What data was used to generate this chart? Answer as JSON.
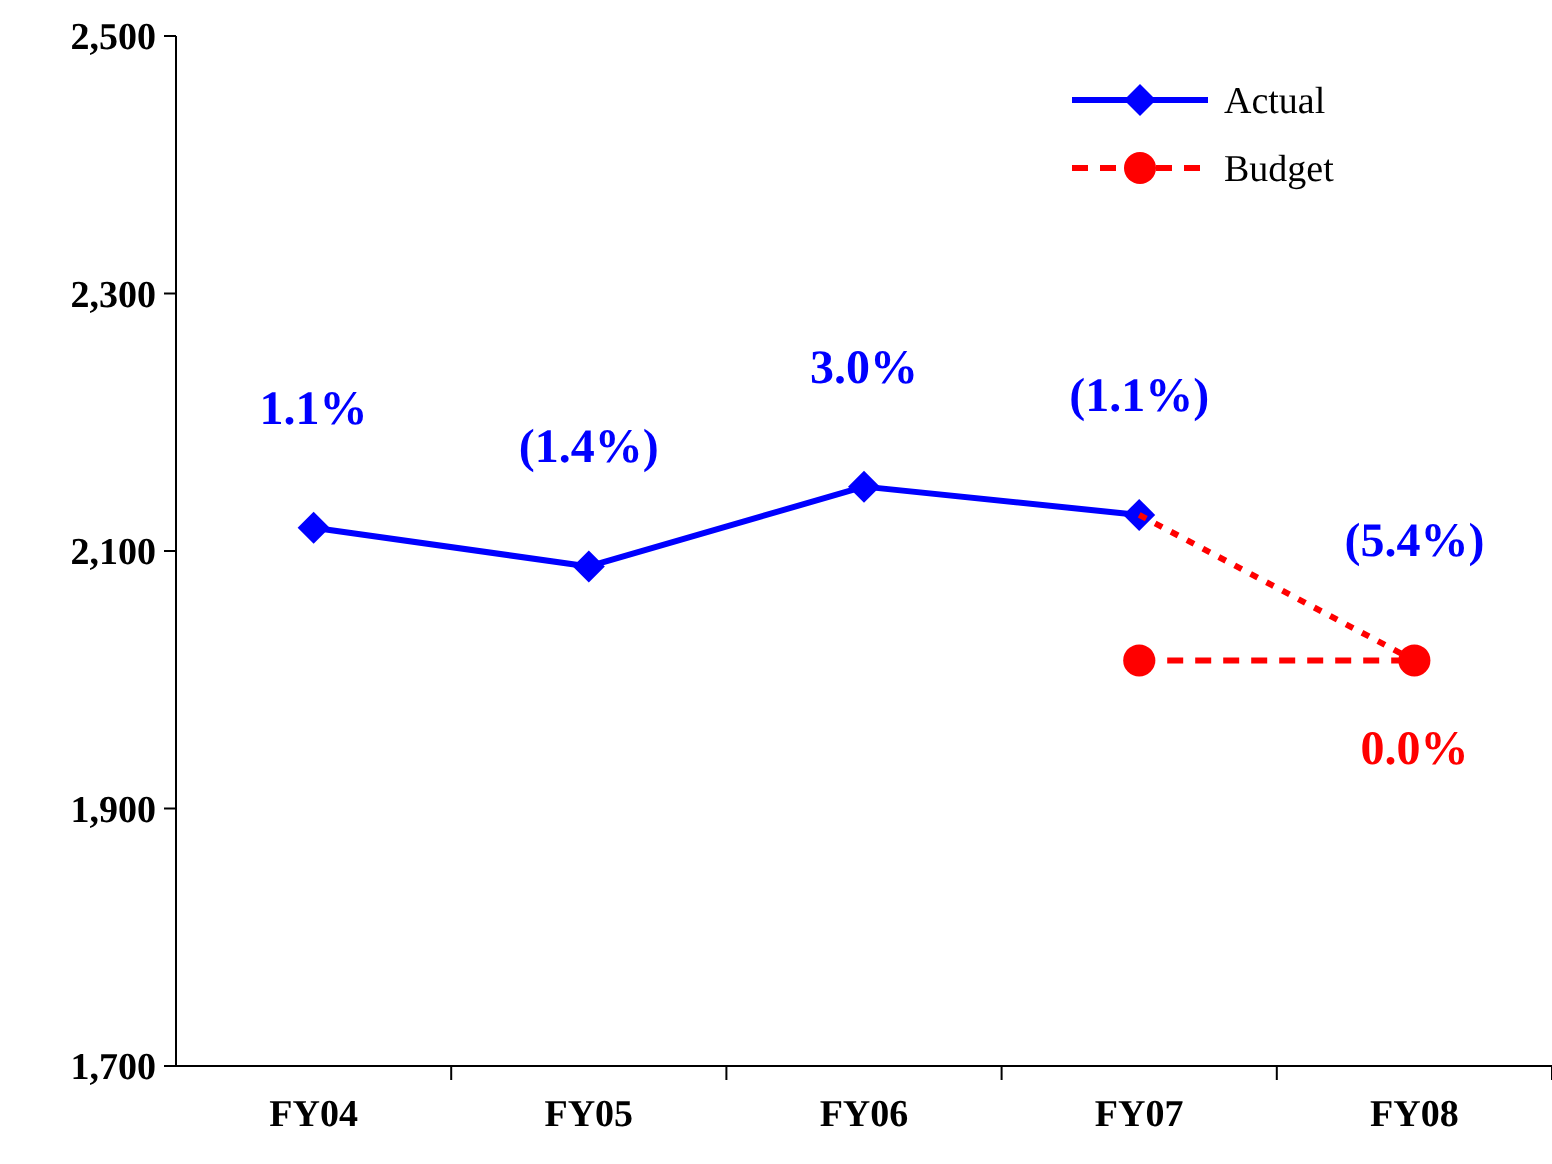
{
  "chart_data": {
    "type": "line",
    "categories": [
      "FY04",
      "FY05",
      "FY06",
      "FY07",
      "FY08"
    ],
    "series": [
      {
        "name": "Actual",
        "color": "#0000ff",
        "marker": "diamond",
        "line_style": "solid",
        "values": [
          2118,
          2088,
          2150,
          2128,
          null
        ]
      },
      {
        "color": "#ff0000",
        "line_style": "dotted",
        "values": [
          null,
          null,
          null,
          2128,
          2015
        ]
      },
      {
        "name": "Budget",
        "color": "#ff0000",
        "marker": "circle",
        "line_style": "dashed",
        "values": [
          null,
          null,
          null,
          2015,
          2015
        ]
      }
    ],
    "annotations": [
      {
        "text": "1.1%",
        "x": "FY04",
        "y": 2118
      },
      {
        "text": "(1.4%)",
        "x": "FY05",
        "y": 2088
      },
      {
        "text": "3.0%",
        "x": "FY06",
        "y": 2150
      },
      {
        "text": "(1.1%)",
        "x": "FY07",
        "y": 2128
      },
      {
        "text": "(5.4%)",
        "x": "FY08",
        "y": 2015
      },
      {
        "text": "0.0%",
        "x": "FY08",
        "y": 2015
      }
    ],
    "ylim": [
      1700,
      2500
    ],
    "yticks": [
      {
        "value": 1700,
        "label": "1,700"
      },
      {
        "value": 1900,
        "label": "1,900"
      },
      {
        "value": 2100,
        "label": "2,100"
      },
      {
        "value": 2300,
        "label": "2,300"
      },
      {
        "value": 2500,
        "label": "2,500"
      }
    ],
    "grid": false,
    "legend": "top right"
  }
}
